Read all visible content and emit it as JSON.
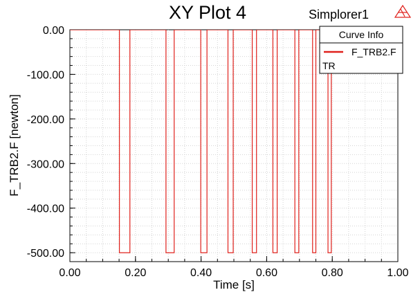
{
  "header": {
    "title": "XY Plot 4",
    "app_name": "Simplorer1",
    "app_icon": "simplorer-triangle-logo-icon"
  },
  "legend": {
    "header": "Curve Info",
    "entries": [
      {
        "label_line1": "F_TRB2.F",
        "label_line2": "TR",
        "color": "#e0201b"
      }
    ]
  },
  "colors": {
    "curve": "#e0201b",
    "grid": "#d4d4d4",
    "axis": "#000000"
  },
  "chart_data": {
    "type": "line",
    "title": "XY Plot 4",
    "xlabel": "Time [s]",
    "ylabel": "F_TRB2.F [newton]",
    "xlim": [
      0,
      1.0
    ],
    "ylim": [
      -520,
      0
    ],
    "x_ticks": [
      0.0,
      0.2,
      0.4,
      0.6,
      0.8,
      1.0
    ],
    "x_tick_labels": [
      "0.00",
      "0.20",
      "0.40",
      "0.60",
      "0.80",
      "1.00"
    ],
    "y_ticks": [
      0,
      -100,
      -200,
      -300,
      -400,
      -500
    ],
    "y_tick_labels": [
      "0.00",
      "-100.00",
      "-200.00",
      "-300.00",
      "-400.00",
      "-500.00"
    ],
    "grid": true,
    "legend_position": "top-right",
    "series": [
      {
        "name": "F_TRB2.F TR",
        "color": "#e0201b",
        "x": [
          0.0,
          0.151,
          0.151,
          0.183,
          0.183,
          0.293,
          0.293,
          0.318,
          0.318,
          0.399,
          0.399,
          0.418,
          0.418,
          0.482,
          0.482,
          0.498,
          0.498,
          0.556,
          0.556,
          0.569,
          0.569,
          0.619,
          0.619,
          0.632,
          0.632,
          0.686,
          0.686,
          0.698,
          0.698,
          0.74,
          0.74,
          0.75,
          0.75,
          0.787,
          0.787,
          0.797,
          0.797,
          1.0
        ],
        "y": [
          0,
          0,
          -500,
          -500,
          0,
          0,
          -500,
          -500,
          0,
          0,
          -500,
          -500,
          0,
          0,
          -500,
          -500,
          0,
          0,
          -500,
          -500,
          0,
          0,
          -500,
          -500,
          0,
          0,
          -500,
          -500,
          0,
          0,
          -500,
          -500,
          0,
          0,
          -500,
          -500,
          0,
          0
        ]
      }
    ]
  }
}
